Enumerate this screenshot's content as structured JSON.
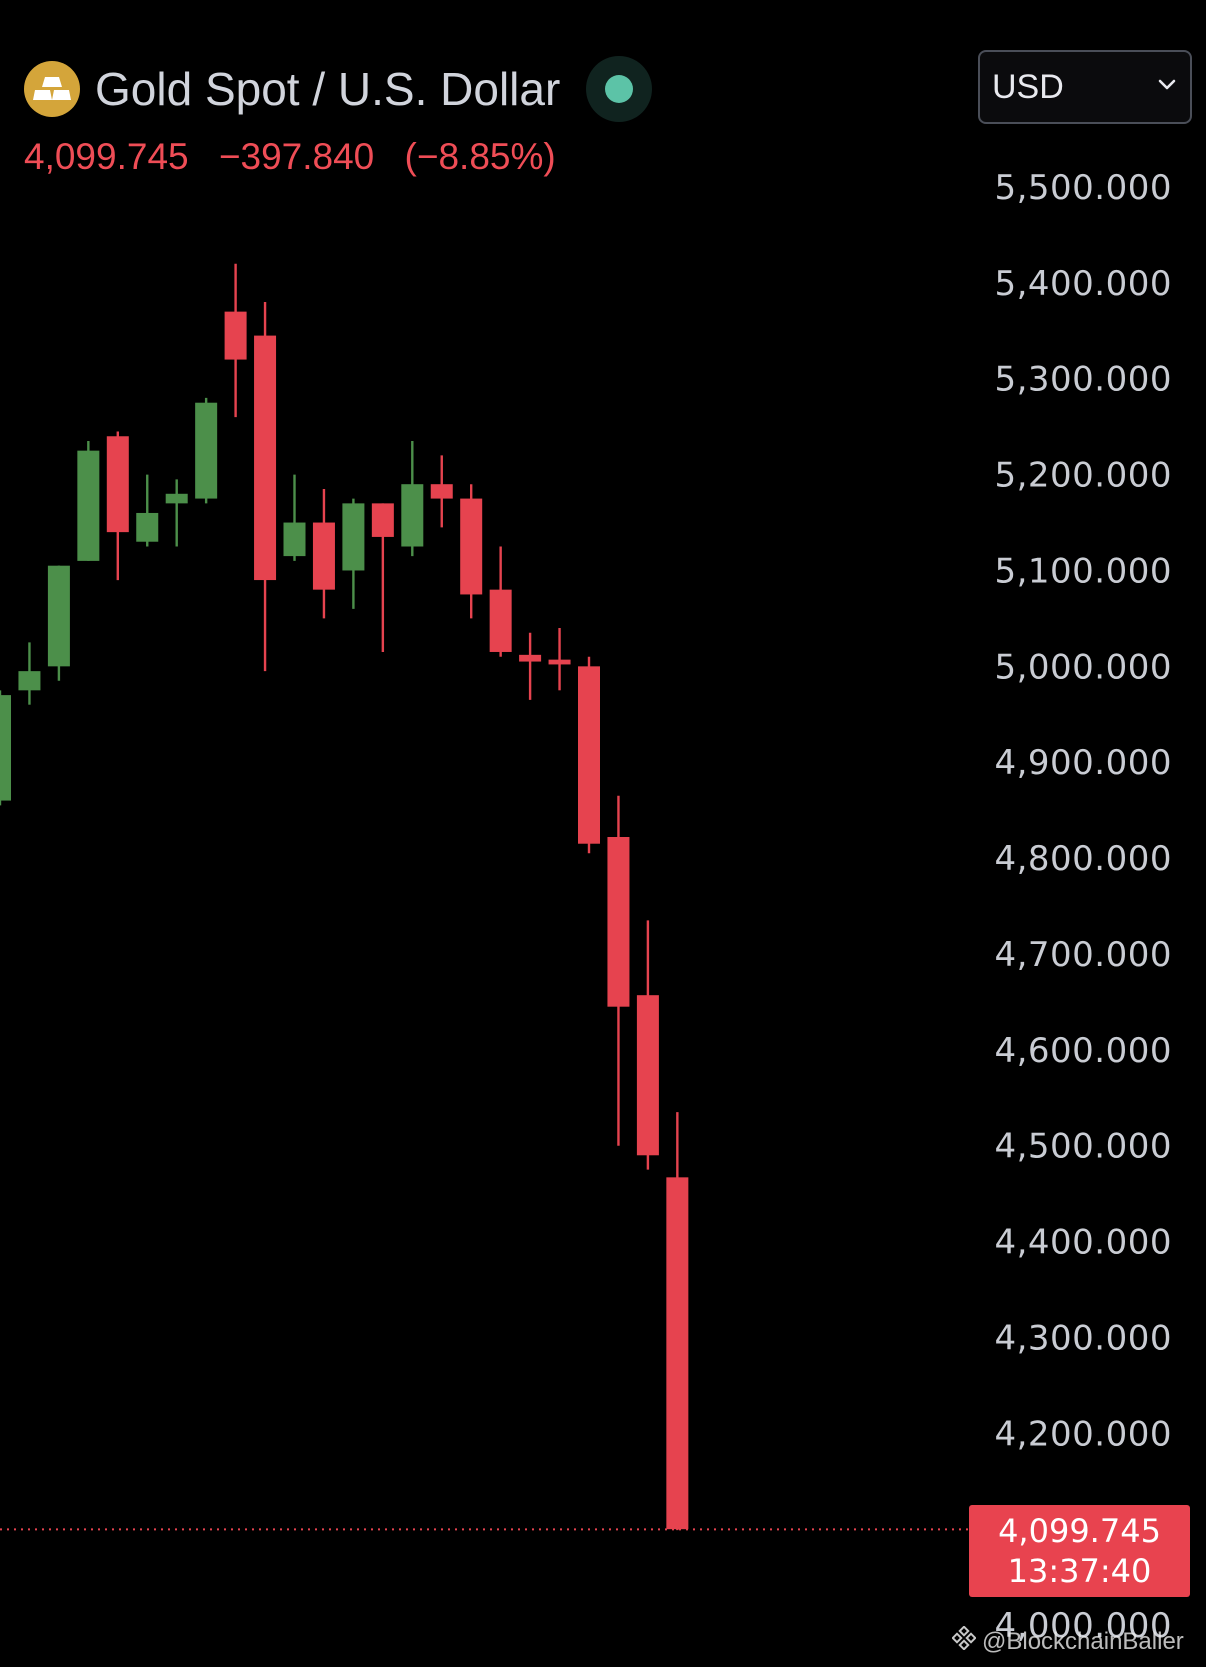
{
  "header": {
    "title": "Gold Spot / U.S. Dollar",
    "logo_icon": "gold-bars-icon",
    "status_icon": "market-open-dot-icon",
    "status_color": "#5cc3a7",
    "last_price": "4,099.745",
    "change": "−397.840",
    "change_percent": "(−8.85%)",
    "change_color": "#ef4d56"
  },
  "currency_select": {
    "value": "USD",
    "icon": "chevron-down-icon"
  },
  "price_tag": {
    "price": "4,099.745",
    "countdown": "13:37:40",
    "color": "#e8434f"
  },
  "watermark": {
    "text": "@BlockchainBaller",
    "icon": "binance-logo-icon"
  },
  "chart_data": {
    "type": "candlestick",
    "y_axis": {
      "ticks": [
        "5,500.000",
        "5,400.000",
        "5,300.000",
        "5,200.000",
        "5,100.000",
        "5,000.000",
        "4,900.000",
        "4,800.000",
        "4,700.000",
        "4,600.000",
        "4,500.000",
        "4,400.000",
        "4,300.000",
        "4,200.000",
        "4,000.000"
      ],
      "tick_values": [
        5500,
        5400,
        5300,
        5200,
        5100,
        5000,
        4900,
        4800,
        4700,
        4600,
        4500,
        4400,
        4300,
        4200,
        4000
      ],
      "range": [
        3980,
        5640
      ],
      "position": "right"
    },
    "last_price_line": {
      "value": 4099.745,
      "style": "dotted"
    },
    "colors": {
      "up": "#4c8f4a",
      "down": "#e6434f"
    },
    "candles": [
      {
        "o": 4860,
        "h": 4975,
        "l": 4855,
        "c": 4970
      },
      {
        "o": 4975,
        "h": 5025,
        "l": 4960,
        "c": 4995
      },
      {
        "o": 5000,
        "h": 5105,
        "l": 4985,
        "c": 5105
      },
      {
        "o": 5110,
        "h": 5235,
        "l": 5110,
        "c": 5225
      },
      {
        "o": 5240,
        "h": 5245,
        "l": 5090,
        "c": 5140
      },
      {
        "o": 5130,
        "h": 5200,
        "l": 5125,
        "c": 5160
      },
      {
        "o": 5170,
        "h": 5195,
        "l": 5125,
        "c": 5180
      },
      {
        "o": 5175,
        "h": 5280,
        "l": 5170,
        "c": 5275
      },
      {
        "o": 5370,
        "h": 5420,
        "l": 5260,
        "c": 5320
      },
      {
        "o": 5345,
        "h": 5380,
        "l": 4995,
        "c": 5090
      },
      {
        "o": 5115,
        "h": 5200,
        "l": 5110,
        "c": 5150
      },
      {
        "o": 5150,
        "h": 5185,
        "l": 5050,
        "c": 5080
      },
      {
        "o": 5100,
        "h": 5175,
        "l": 5060,
        "c": 5170
      },
      {
        "o": 5170,
        "h": 5170,
        "l": 5015,
        "c": 5135
      },
      {
        "o": 5125,
        "h": 5235,
        "l": 5115,
        "c": 5190
      },
      {
        "o": 5190,
        "h": 5220,
        "l": 5145,
        "c": 5175
      },
      {
        "o": 5175,
        "h": 5190,
        "l": 5050,
        "c": 5075
      },
      {
        "o": 5080,
        "h": 5125,
        "l": 5010,
        "c": 5015
      },
      {
        "o": 5012,
        "h": 5035,
        "l": 4965,
        "c": 5005
      },
      {
        "o": 5007,
        "h": 5040,
        "l": 4975,
        "c": 5002
      },
      {
        "o": 5000,
        "h": 5010,
        "l": 4805,
        "c": 4815
      },
      {
        "o": 4822,
        "h": 4865,
        "l": 4500,
        "c": 4645
      },
      {
        "o": 4657,
        "h": 4735,
        "l": 4475,
        "c": 4490
      },
      {
        "o": 4467,
        "h": 4535,
        "l": 4099,
        "c": 4100
      }
    ]
  }
}
